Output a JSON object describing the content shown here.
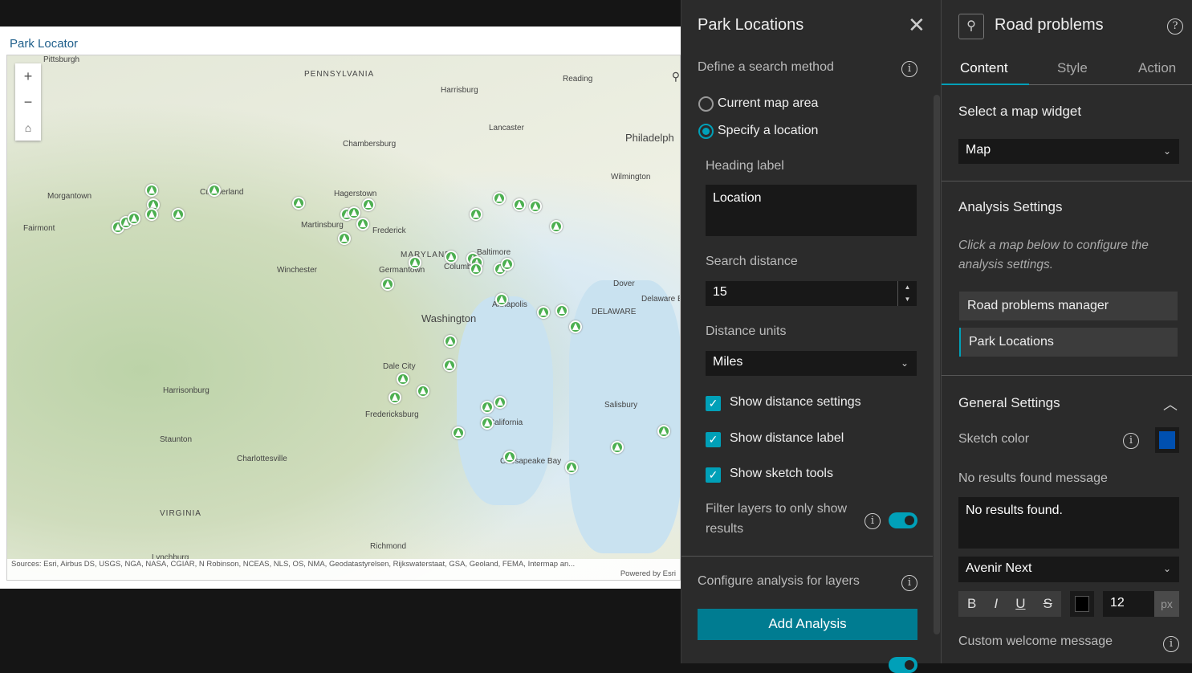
{
  "map_app": {
    "title": "Park Locator",
    "cities": [
      "Pittsburgh",
      "PENNSYLVANIA",
      "Harrisburg",
      "Reading",
      "Lancaster",
      "Philadelph",
      "Chambersburg",
      "Wilmington",
      "Morgantown",
      "Cumberland",
      "Hagerstown",
      "Fairmont",
      "Martinsburg",
      "Frederick",
      "MARYLAND",
      "Baltimore",
      "Germantown",
      "Columbia",
      "Winchester",
      "Dover",
      "Annapolis",
      "Washington",
      "DELAWARE",
      "Delaware Bay",
      "Dale City",
      "Harrisonburg",
      "Fredericksburg",
      "Salisbury",
      "Staunton",
      "California",
      "Charlottesville",
      "Chesapeake Bay",
      "VIRGINIA",
      "Richmond",
      "Lynchburg"
    ],
    "zoom_in": "+",
    "zoom_out": "−",
    "home_icon": "home-icon",
    "attribution": "Sources: Esri, Airbus DS, USGS, NGA, NASA, CGIAR, N Robinson, NCEAS, NLS, OS, NMA, Geodatastyrelsen, Rijkswaterstaat, GSA, Geoland, FEMA, Intermap an...",
    "powered_by": "Powered by Esri"
  },
  "panel": {
    "title": "Park Locations",
    "search_method_label": "Define a search method",
    "radio_current": "Current map area",
    "radio_specify": "Specify a location",
    "selected": "Specify a location",
    "heading_label": "Heading label",
    "heading_value": "Location",
    "search_distance_label": "Search distance",
    "search_distance": "15",
    "distance_units_label": "Distance units",
    "distance_units": "Miles",
    "show_distance_settings": "Show distance settings",
    "show_distance_label": "Show distance label",
    "show_sketch_tools": "Show sketch tools",
    "filter_label_1": "Filter layers to only show",
    "filter_label_2": "results",
    "filter_on": true,
    "configure_label": "Configure analysis for layers",
    "add_analysis": "Add Analysis",
    "accent": "#00a0b8"
  },
  "settings": {
    "title": "Road problems",
    "tabs": [
      "Content",
      "Style",
      "Action"
    ],
    "active_tab": "Content",
    "select_widget_label": "Select a map widget",
    "map_widget": "Map",
    "analysis_settings": "Analysis Settings",
    "analysis_hint": "Click a map below to configure the analysis settings.",
    "layers": [
      "Road problems manager",
      "Park Locations"
    ],
    "general_settings": "General Settings",
    "sketch_color_label": "Sketch color",
    "sketch_color": "#0050b0",
    "no_results_label": "No results found message",
    "no_results_value": "No results found.",
    "font": "Avenir Next",
    "bold": "B",
    "italic": "I",
    "underline": "U",
    "strike": "S",
    "font_size": "12",
    "unit": "px",
    "custom_welcome": "Custom welcome message"
  }
}
